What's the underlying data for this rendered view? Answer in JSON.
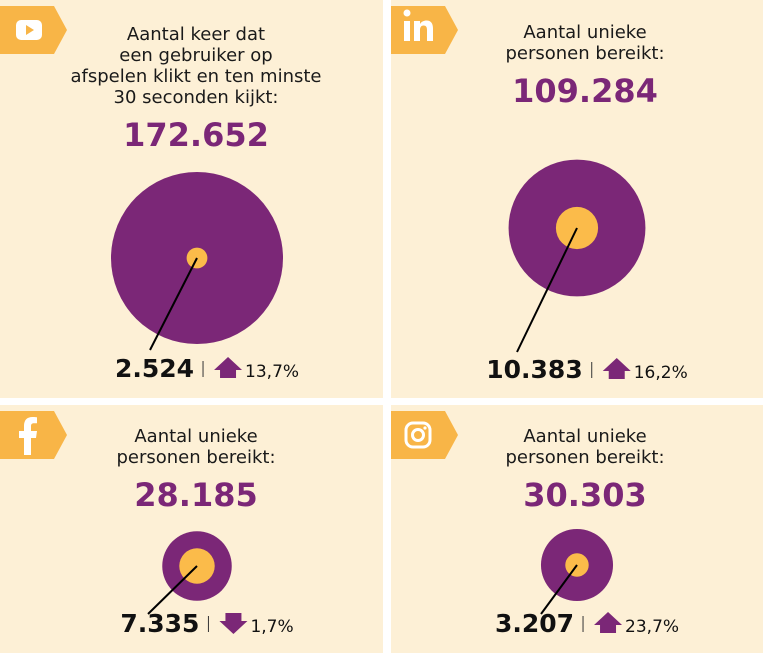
{
  "chart_data": [
    {
      "type": "nested-circle",
      "title_lines": [
        "Aantal keer dat",
        "een gebruiker op",
        "afspelen klikt en ten minste",
        "30 seconden kijkt:"
      ],
      "values": [
        172652,
        2524
      ],
      "value_labels": [
        "172.652",
        "2.524"
      ],
      "change": 13.7,
      "change_label": "13,7%",
      "trend": "up",
      "colors": [
        "#7b2777",
        "#fbbb4a"
      ]
    },
    {
      "type": "nested-circle",
      "title_lines": [
        "Aantal unieke",
        "personen bereikt:"
      ],
      "values": [
        109284,
        10383
      ],
      "value_labels": [
        "109.284",
        "10.383"
      ],
      "change": 16.2,
      "change_label": "16,2%",
      "trend": "up",
      "colors": [
        "#7b2777",
        "#fbbb4a"
      ]
    },
    {
      "type": "nested-circle",
      "title_lines": [
        "Aantal unieke",
        "personen bereikt:"
      ],
      "values": [
        28185,
        7335
      ],
      "value_labels": [
        "28.185",
        "7.335"
      ],
      "change": 1.7,
      "change_label": "1,7%",
      "trend": "down",
      "colors": [
        "#7b2777",
        "#fbbb4a"
      ]
    },
    {
      "type": "nested-circle",
      "title_lines": [
        "Aantal unieke",
        "personen bereikt:"
      ],
      "values": [
        30303,
        3207
      ],
      "value_labels": [
        "30.303",
        "3.207"
      ],
      "change": 23.7,
      "change_label": "23,7%",
      "trend": "up",
      "colors": [
        "#7b2777",
        "#fbbb4a"
      ]
    }
  ]
}
